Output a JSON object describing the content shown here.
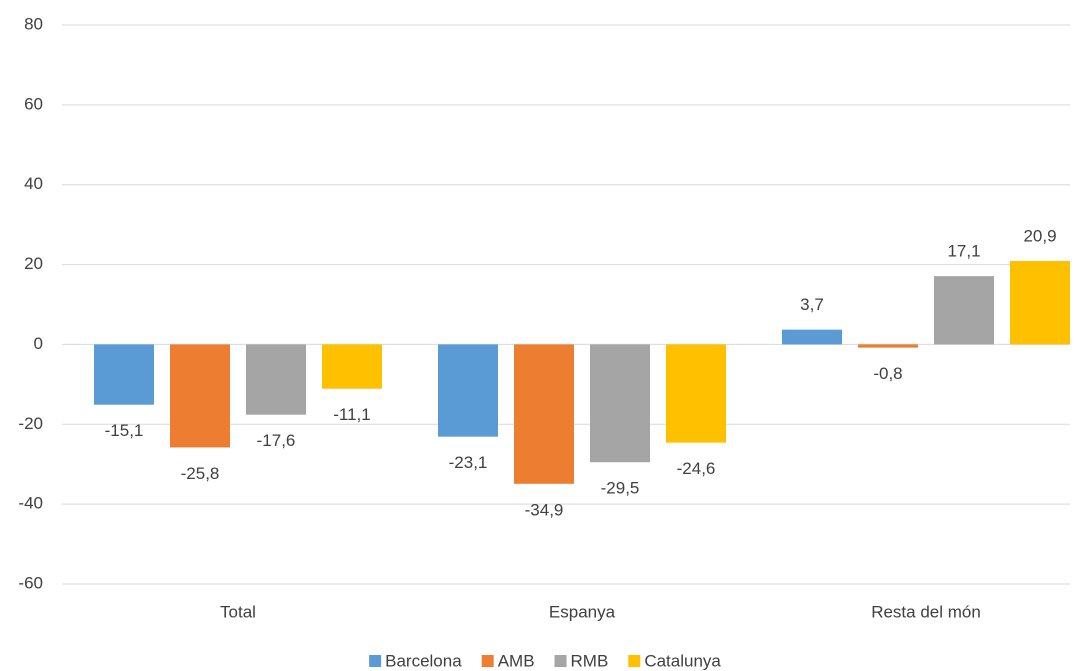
{
  "chart_data": {
    "type": "bar",
    "categories": [
      "Total",
      "Espanya",
      "Resta del món"
    ],
    "series": [
      {
        "name": "Barcelona",
        "color": "#5b9bd5",
        "values": [
          -15.1,
          -23.1,
          3.7
        ],
        "value_labels": [
          "-15,1",
          "-23,1",
          "3,7"
        ]
      },
      {
        "name": "AMB",
        "color": "#ed7d31",
        "values": [
          -25.8,
          -34.9,
          -0.8
        ],
        "value_labels": [
          "-25,8",
          "-34,9",
          "-0,8"
        ]
      },
      {
        "name": "RMB",
        "color": "#a5a5a5",
        "values": [
          -17.6,
          -29.5,
          17.1
        ],
        "value_labels": [
          "-17,6",
          "-29,5",
          "17,1"
        ]
      },
      {
        "name": "Catalunya",
        "color": "#ffc000",
        "values": [
          -11.1,
          -24.6,
          20.9
        ],
        "value_labels": [
          "-11,1",
          "-24,6",
          "20,9"
        ]
      }
    ],
    "ylim": [
      -60,
      80
    ],
    "yticks": [
      -60,
      -40,
      -20,
      0,
      20,
      40,
      60,
      80
    ],
    "grid": true,
    "legend": "bottom"
  }
}
